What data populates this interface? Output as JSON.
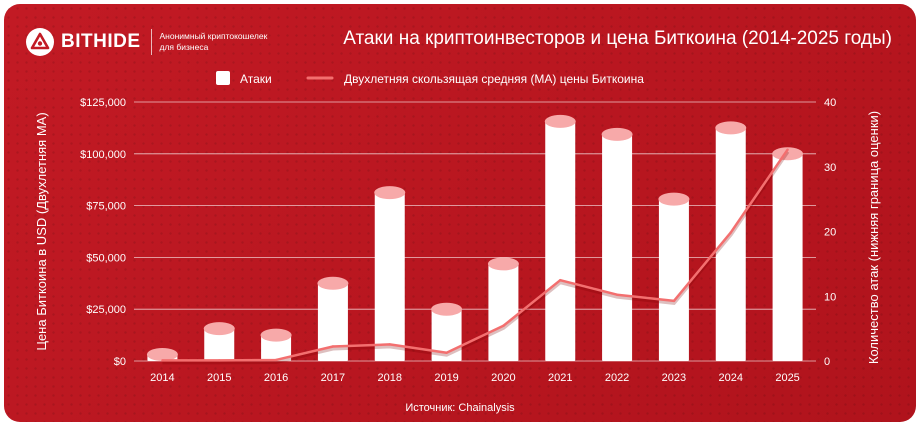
{
  "brand": {
    "name": "BITHIDE",
    "tagline_line1": "Анонимный криптокошелек",
    "tagline_line2": "для бизнеса"
  },
  "source_label": "Источник: Chainalysis",
  "colors": {
    "background": "#b7151e",
    "bar": "#ffffff",
    "bar_top": "#f7a9a9",
    "line": "#f36f6f",
    "text": "#ffffff"
  },
  "chart_data": {
    "type": "bar",
    "title": "Атаки на криптоинвесторов и цена Биткоина (2014-2025 годы)",
    "categories": [
      "2014",
      "2015",
      "2016",
      "2017",
      "2018",
      "2019",
      "2020",
      "2021",
      "2022",
      "2023",
      "2024",
      "2025"
    ],
    "series": [
      {
        "name": "Атаки",
        "type": "bar",
        "axis": "right",
        "values": [
          1,
          5,
          4,
          12,
          26,
          8,
          15,
          37,
          35,
          25,
          36,
          32
        ]
      },
      {
        "name": "Двухлетняя скользящая средняя (MA) цены Биткоина",
        "type": "line",
        "axis": "left",
        "values": [
          300,
          300,
          500,
          7000,
          8000,
          4000,
          17000,
          39000,
          32000,
          29000,
          62000,
          102000
        ]
      }
    ],
    "ylabel_left": "Цена Биткоина в USD (Двухлетняя MA)",
    "ylabel_right": "Количество атак (нижняя граница оценки)",
    "ylim_left": [
      0,
      125000
    ],
    "yticks_left": [
      "$0",
      "$25,000",
      "$50,000",
      "$75,000",
      "$100,000",
      "$125,000"
    ],
    "ylim_right": [
      0,
      40
    ],
    "yticks_right": [
      "0",
      "10",
      "20",
      "30",
      "40"
    ],
    "grid": true,
    "legend_position": "top-center"
  }
}
